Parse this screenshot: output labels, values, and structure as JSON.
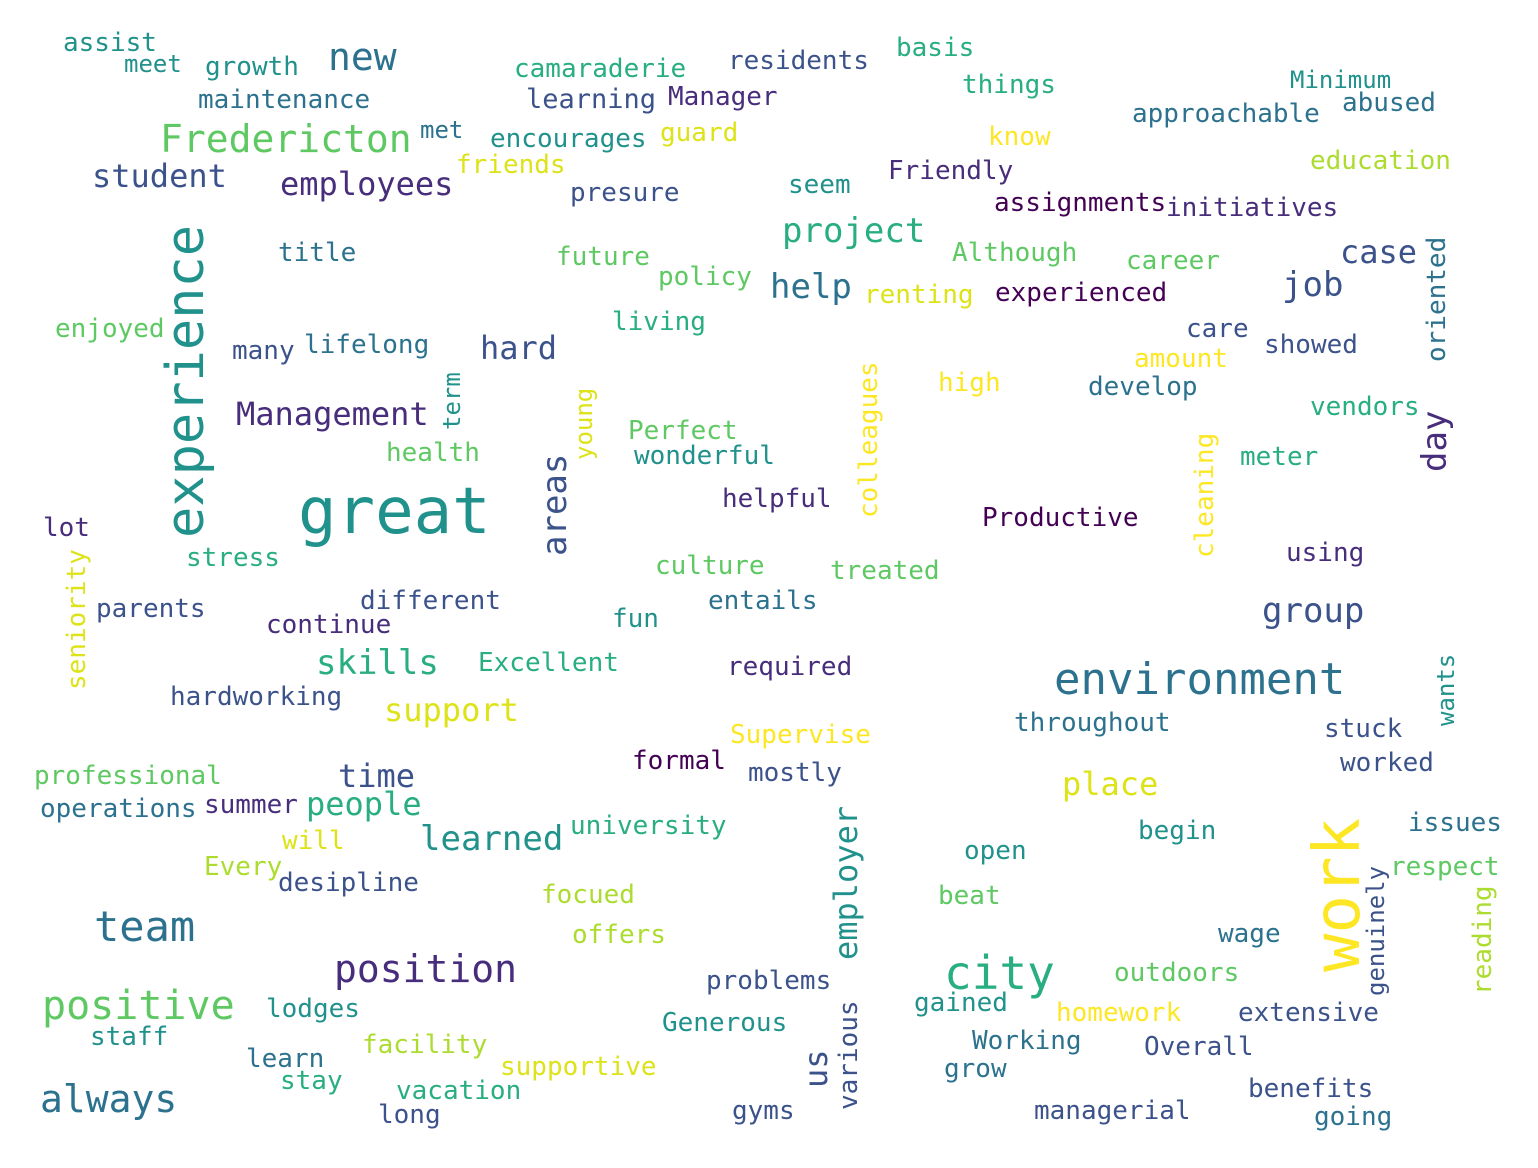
{
  "words": [
    "assist",
    "meet",
    "growth",
    "new",
    "camaraderie",
    "residents",
    "basis",
    "things",
    "Minimum",
    "abused",
    "maintenance",
    "learning",
    "Manager",
    "approachable",
    "Fredericton",
    "met",
    "encourages",
    "guard",
    "know",
    "friends",
    "education",
    "student",
    "employees",
    "presure",
    "seem",
    "Friendly",
    "assignments",
    "initiatives",
    "experience",
    "project",
    "title",
    "future",
    "Although",
    "career",
    "case",
    "oriented",
    "policy",
    "help",
    "renting",
    "experienced",
    "job",
    "enjoyed",
    "living",
    "care",
    "amount",
    "showed",
    "many",
    "lifelong",
    "hard",
    "term",
    "young",
    "high",
    "develop",
    "colleagues",
    "Management",
    "vendors",
    "day",
    "Perfect",
    "health",
    "wonderful",
    "cleaning",
    "meter",
    "great",
    "areas",
    "helpful",
    "Productive",
    "lot",
    "stress",
    "culture",
    "treated",
    "using",
    "seniority",
    "parents",
    "different",
    "entails",
    "group",
    "continue",
    "fun",
    "skills",
    "Excellent",
    "required",
    "environment",
    "hardworking",
    "support",
    "throughout",
    "wants",
    "stuck",
    "Supervise",
    "professional",
    "formal",
    "worked",
    "time",
    "mostly",
    "place",
    "operations",
    "summer",
    "people",
    "work",
    "issues",
    "university",
    "learned",
    "begin",
    "will",
    "employer",
    "open",
    "respect",
    "Every",
    "desipline",
    "genuinely",
    "focued",
    "beat",
    "reading",
    "team",
    "offers",
    "wage",
    "position",
    "city",
    "outdoors",
    "problems",
    "positive",
    "lodges",
    "gained",
    "homework",
    "extensive",
    "Generous",
    "staff",
    "facility",
    "various",
    "Working",
    "Overall",
    "learn",
    "supportive",
    "us",
    "grow",
    "stay",
    "vacation",
    "benefits",
    "always",
    "long",
    "gyms",
    "managerial",
    "going"
  ]
}
